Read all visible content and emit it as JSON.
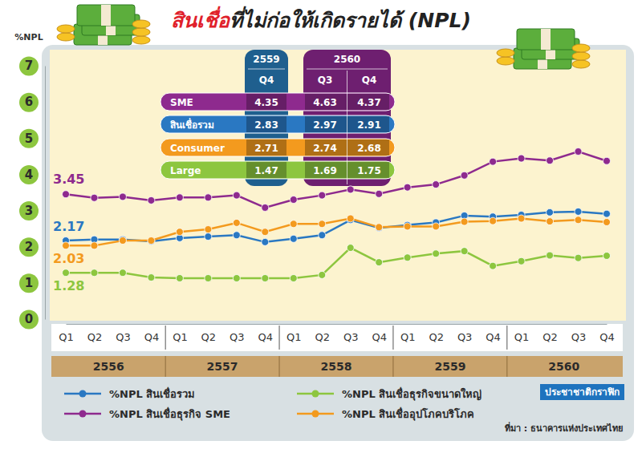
{
  "chart_data": {
    "type": "line",
    "title": [
      "สินเชื่อ",
      "ที่ไม่ก่อให้เกิดรายได้ (NPL)"
    ],
    "ylabel": "%NPL",
    "categories": [
      "Q1",
      "Q2",
      "Q3",
      "Q4",
      "Q1",
      "Q2",
      "Q3",
      "Q4",
      "Q1",
      "Q2",
      "Q3",
      "Q4",
      "Q1",
      "Q2",
      "Q3",
      "Q4",
      "Q1",
      "Q2",
      "Q3",
      "Q4"
    ],
    "x_groups": [
      "2556",
      "2557",
      "2558",
      "2559",
      "2560"
    ],
    "ylim": [
      0,
      7
    ],
    "yticks": [
      0,
      1,
      2,
      3,
      4,
      5,
      6,
      7
    ],
    "grid": false,
    "legend": "bottom",
    "marker": "circle",
    "series": [
      {
        "name": "%NPL สินเชื่อรวม",
        "color": "#2a78c2",
        "values": [
          2.17,
          2.2,
          2.2,
          2.15,
          2.24,
          2.28,
          2.32,
          2.13,
          2.22,
          2.32,
          2.74,
          2.52,
          2.6,
          2.67,
          2.86,
          2.83,
          2.88,
          2.95,
          2.97,
          2.91
        ],
        "value_labels": [
          "2.17",
          null,
          null,
          null,
          null,
          null,
          null,
          null,
          null,
          null,
          null,
          null,
          null,
          null,
          null,
          null,
          null,
          null,
          null,
          null
        ]
      },
      {
        "name": "%NPL สินเชื่อธุรกิจขนาดใหญ่",
        "color": "#8dc63f",
        "values": [
          1.28,
          1.28,
          1.28,
          1.15,
          1.13,
          1.13,
          1.13,
          1.13,
          1.13,
          1.22,
          1.97,
          1.57,
          1.7,
          1.81,
          1.88,
          1.47,
          1.6,
          1.76,
          1.69,
          1.75
        ],
        "value_labels": [
          "1.28",
          null,
          null,
          null,
          null,
          null,
          null,
          null,
          null,
          null,
          null,
          null,
          null,
          null,
          null,
          null,
          null,
          null,
          null,
          null
        ]
      },
      {
        "name": "%NPL สินเชื่อธุรกิจ SME",
        "color": "#8e2a8e",
        "values": [
          3.45,
          3.35,
          3.38,
          3.28,
          3.36,
          3.36,
          3.42,
          3.08,
          3.3,
          3.42,
          3.58,
          3.46,
          3.64,
          3.72,
          3.97,
          4.35,
          4.44,
          4.38,
          4.63,
          4.37
        ],
        "value_labels": [
          "3.45",
          null,
          null,
          null,
          null,
          null,
          null,
          null,
          null,
          null,
          null,
          null,
          null,
          null,
          null,
          null,
          null,
          null,
          null,
          null
        ]
      },
      {
        "name": "%NPL สินเชื่ออุปโภคบริโภค",
        "color": "#f39a1e",
        "values": [
          2.03,
          2.03,
          2.17,
          2.17,
          2.41,
          2.48,
          2.66,
          2.41,
          2.63,
          2.63,
          2.78,
          2.54,
          2.56,
          2.56,
          2.69,
          2.71,
          2.78,
          2.7,
          2.74,
          2.68
        ],
        "value_labels": [
          "2.03",
          null,
          null,
          null,
          null,
          null,
          null,
          null,
          null,
          null,
          null,
          null,
          null,
          null,
          null,
          null,
          null,
          null,
          null,
          null
        ]
      }
    ],
    "inset_table": {
      "groups": [
        {
          "label": "2559",
          "color": "#1f5f8e",
          "columns": [
            "Q4"
          ]
        },
        {
          "label": "2560",
          "color": "#6e1f70",
          "columns": [
            "Q3",
            "Q4"
          ]
        }
      ],
      "rows": [
        {
          "label": "SME",
          "color": "#8e2a8e",
          "values": [
            4.35,
            4.63,
            4.37
          ]
        },
        {
          "label": "สินเชื่อรวม",
          "color": "#2a78c2",
          "values": [
            2.83,
            2.97,
            2.91
          ]
        },
        {
          "label": "Consumer",
          "color": "#f39a1e",
          "values": [
            2.71,
            2.74,
            2.68
          ]
        },
        {
          "label": "Large",
          "color": "#8dc63f",
          "values": [
            1.47,
            1.69,
            1.75
          ]
        }
      ]
    },
    "credit": "ประชาชาติกราฟิก",
    "source": "ที่มา : ธนาคารแห่งประเทศไทย"
  }
}
